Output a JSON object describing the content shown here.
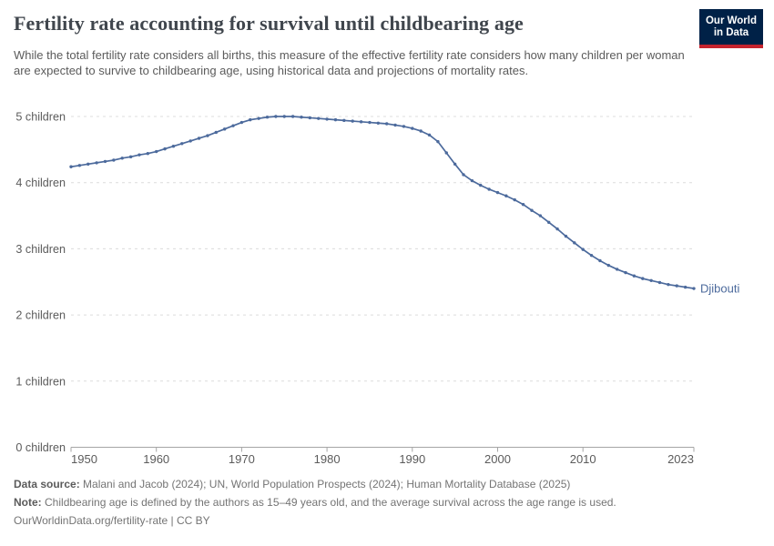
{
  "header": {
    "title": "Fertility rate accounting for survival until childbearing age",
    "subtitle": "While the total fertility rate considers all births, this measure of the effective fertility rate considers how many children per woman are expected to survive to childbearing age, using historical data and projections of mortality rates.",
    "logo": {
      "line1": "Our World",
      "line2": "in Data",
      "bg_color": "#002147",
      "accent_color": "#c5232e"
    }
  },
  "chart_data": {
    "type": "line",
    "title": "Fertility rate accounting for survival until childbearing age",
    "xlabel": "",
    "ylabel": "children",
    "xlim": [
      1950,
      2023
    ],
    "ylim": [
      0,
      5
    ],
    "grid": true,
    "legend": "end-of-line-label",
    "x_ticks": [
      1950,
      1960,
      1970,
      1980,
      1990,
      2000,
      2010,
      2023
    ],
    "y_ticks": [
      {
        "value": 0,
        "label": "0 children"
      },
      {
        "value": 1,
        "label": "1 children"
      },
      {
        "value": 2,
        "label": "2 children"
      },
      {
        "value": 3,
        "label": "3 children"
      },
      {
        "value": 4,
        "label": "4 children"
      },
      {
        "value": 5,
        "label": "5 children"
      }
    ],
    "colors": {
      "line": "#4C6A9C",
      "grid": "#dcdcdc",
      "axis": "#a5a5a5",
      "tick_label": "#5b5b5b"
    },
    "series": [
      {
        "name": "Djibouti",
        "color": "#4C6A9C",
        "x": [
          1950,
          1951,
          1952,
          1953,
          1954,
          1955,
          1956,
          1957,
          1958,
          1959,
          1960,
          1961,
          1962,
          1963,
          1964,
          1965,
          1966,
          1967,
          1968,
          1969,
          1970,
          1971,
          1972,
          1973,
          1974,
          1975,
          1976,
          1977,
          1978,
          1979,
          1980,
          1981,
          1982,
          1983,
          1984,
          1985,
          1986,
          1987,
          1988,
          1989,
          1990,
          1991,
          1992,
          1993,
          1994,
          1995,
          1996,
          1997,
          1998,
          1999,
          2000,
          2001,
          2002,
          2003,
          2004,
          2005,
          2006,
          2007,
          2008,
          2009,
          2010,
          2011,
          2012,
          2013,
          2014,
          2015,
          2016,
          2017,
          2018,
          2019,
          2020,
          2021,
          2022,
          2023
        ],
        "values": [
          4.24,
          4.26,
          4.28,
          4.3,
          4.32,
          4.34,
          4.37,
          4.39,
          4.42,
          4.44,
          4.47,
          4.51,
          4.55,
          4.59,
          4.63,
          4.67,
          4.71,
          4.76,
          4.81,
          4.86,
          4.91,
          4.95,
          4.97,
          4.99,
          5.0,
          5.0,
          5.0,
          4.99,
          4.98,
          4.97,
          4.96,
          4.95,
          4.94,
          4.93,
          4.92,
          4.91,
          4.9,
          4.89,
          4.87,
          4.85,
          4.82,
          4.78,
          4.72,
          4.62,
          4.45,
          4.28,
          4.12,
          4.03,
          3.96,
          3.9,
          3.85,
          3.8,
          3.74,
          3.67,
          3.58,
          3.5,
          3.4,
          3.3,
          3.19,
          3.09,
          2.99,
          2.9,
          2.82,
          2.75,
          2.69,
          2.64,
          2.59,
          2.55,
          2.52,
          2.49,
          2.46,
          2.44,
          2.42,
          2.4
        ]
      }
    ]
  },
  "footer": {
    "data_source_label": "Data source:",
    "data_source_text": "Malani and Jacob (2024); UN, World Population Prospects (2024); Human Mortality Database (2025)",
    "note_label": "Note:",
    "note_text": "Childbearing age is defined by the authors as 15–49 years old, and the average survival across the age range is used.",
    "link_text": "OurWorldinData.org/fertility-rate | CC BY"
  }
}
